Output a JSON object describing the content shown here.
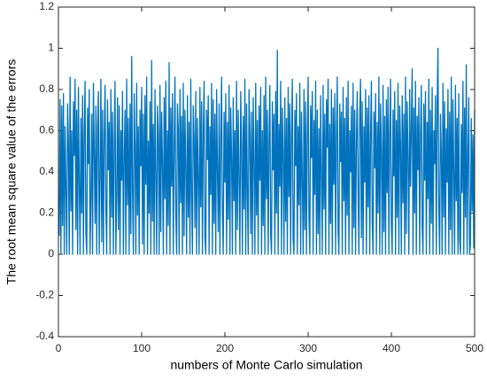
{
  "chart_data": {
    "type": "line",
    "xlabel": "numbers of Monte Carlo simulation",
    "ylabel": "The root mean square value of the errors",
    "color": "#0072bd",
    "xlim": [
      0,
      500
    ],
    "xticks": [
      0,
      100,
      200,
      300,
      400,
      500
    ],
    "ylim": [
      -0.4,
      1.2
    ],
    "yticks": [
      -0.4,
      -0.2,
      0,
      0.2,
      0.4,
      0.6,
      0.8,
      1,
      1.2
    ],
    "grid": false,
    "x": [
      1,
      2,
      3,
      4,
      5,
      6,
      7,
      8,
      9,
      10,
      11,
      12,
      13,
      14,
      15,
      16,
      17,
      18,
      19,
      20,
      21,
      22,
      23,
      24,
      25,
      26,
      27,
      28,
      29,
      30,
      31,
      32,
      33,
      34,
      35,
      36,
      37,
      38,
      39,
      40,
      41,
      42,
      43,
      44,
      45,
      46,
      47,
      48,
      49,
      50,
      51,
      52,
      53,
      54,
      55,
      56,
      57,
      58,
      59,
      60,
      61,
      62,
      63,
      64,
      65,
      66,
      67,
      68,
      69,
      70,
      71,
      72,
      73,
      74,
      75,
      76,
      77,
      78,
      79,
      80,
      81,
      82,
      83,
      84,
      85,
      86,
      87,
      88,
      89,
      90,
      91,
      92,
      93,
      94,
      95,
      96,
      97,
      98,
      99,
      100,
      101,
      102,
      103,
      104,
      105,
      106,
      107,
      108,
      109,
      110,
      111,
      112,
      113,
      114,
      115,
      116,
      117,
      118,
      119,
      120,
      121,
      122,
      123,
      124,
      125,
      126,
      127,
      128,
      129,
      130,
      131,
      132,
      133,
      134,
      135,
      136,
      137,
      138,
      139,
      140,
      141,
      142,
      143,
      144,
      145,
      146,
      147,
      148,
      149,
      150,
      151,
      152,
      153,
      154,
      155,
      156,
      157,
      158,
      159,
      160,
      161,
      162,
      163,
      164,
      165,
      166,
      167,
      168,
      169,
      170,
      171,
      172,
      173,
      174,
      175,
      176,
      177,
      178,
      179,
      180,
      181,
      182,
      183,
      184,
      185,
      186,
      187,
      188,
      189,
      190,
      191,
      192,
      193,
      194,
      195,
      196,
      197,
      198,
      199,
      200,
      201,
      202,
      203,
      204,
      205,
      206,
      207,
      208,
      209,
      210,
      211,
      212,
      213,
      214,
      215,
      216,
      217,
      218,
      219,
      220,
      221,
      222,
      223,
      224,
      225,
      226,
      227,
      228,
      229,
      230,
      231,
      232,
      233,
      234,
      235,
      236,
      237,
      238,
      239,
      240,
      241,
      242,
      243,
      244,
      245,
      246,
      247,
      248,
      249,
      250,
      251,
      252,
      253,
      254,
      255,
      256,
      257,
      258,
      259,
      260,
      261,
      262,
      263,
      264,
      265,
      266,
      267,
      268,
      269,
      270,
      271,
      272,
      273,
      274,
      275,
      276,
      277,
      278,
      279,
      280,
      281,
      282,
      283,
      284,
      285,
      286,
      287,
      288,
      289,
      290,
      291,
      292,
      293,
      294,
      295,
      296,
      297,
      298,
      299,
      300,
      301,
      302,
      303,
      304,
      305,
      306,
      307,
      308,
      309,
      310,
      311,
      312,
      313,
      314,
      315,
      316,
      317,
      318,
      319,
      320,
      321,
      322,
      323,
      324,
      325,
      326,
      327,
      328,
      329,
      330,
      331,
      332,
      333,
      334,
      335,
      336,
      337,
      338,
      339,
      340,
      341,
      342,
      343,
      344,
      345,
      346,
      347,
      348,
      349,
      350,
      351,
      352,
      353,
      354,
      355,
      356,
      357,
      358,
      359,
      360,
      361,
      362,
      363,
      364,
      365,
      366,
      367,
      368,
      369,
      370,
      371,
      372,
      373,
      374,
      375,
      376,
      377,
      378,
      379,
      380,
      381,
      382,
      383,
      384,
      385,
      386,
      387,
      388,
      389,
      390,
      391,
      392,
      393,
      394,
      395,
      396,
      397,
      398,
      399,
      400,
      401,
      402,
      403,
      404,
      405,
      406,
      407,
      408,
      409,
      410,
      411,
      412,
      413,
      414,
      415,
      416,
      417,
      418,
      419,
      420,
      421,
      422,
      423,
      424,
      425,
      426,
      427,
      428,
      429,
      430,
      431,
      432,
      433,
      434,
      435,
      436,
      437,
      438,
      439,
      440,
      441,
      442,
      443,
      444,
      445,
      446,
      447,
      448,
      449,
      450,
      451,
      452,
      453,
      454,
      455,
      456,
      457,
      458,
      459,
      460,
      461,
      462,
      463,
      464,
      465,
      466,
      467,
      468,
      469,
      470,
      471,
      472,
      473,
      474,
      475,
      476,
      477,
      478,
      479,
      480,
      481,
      482,
      483,
      484,
      485,
      486,
      487,
      488,
      489,
      490,
      491,
      492,
      493,
      494,
      495,
      496,
      497,
      498,
      499,
      500
    ],
    "values": [
      0.09,
      0.75,
      0,
      0.72,
      0.14,
      0.78,
      0,
      0.62,
      0.3,
      0,
      0.73,
      0.55,
      0,
      0.86,
      0.21,
      0.6,
      0,
      0.74,
      0.48,
      0.85,
      0.12,
      0.7,
      0,
      0.81,
      0.35,
      0,
      0.66,
      0.2,
      0.77,
      0,
      0.59,
      0.84,
      0.1,
      0,
      0.71,
      0.44,
      0.8,
      0,
      0.26,
      0.68,
      0,
      0.83,
      0.5,
      0.15,
      0.72,
      0,
      0.62,
      0.79,
      0,
      0.38,
      0.85,
      0.06,
      0.7,
      0,
      0.57,
      0.82,
      0.22,
      0,
      0.75,
      0.41,
      0.64,
      0,
      0.8,
      0.18,
      0.69,
      0,
      0.53,
      0.84,
      0,
      0.28,
      0.76,
      0.12,
      0.72,
      0,
      0.6,
      0.36,
      0.79,
      0,
      0.47,
      0.7,
      0,
      0.85,
      0.24,
      0.66,
      0,
      0.73,
      0.1,
      0.96,
      0.31,
      0,
      0.78,
      0.52,
      0,
      0.83,
      0.19,
      0.62,
      0,
      0.7,
      0.43,
      0.81,
      0.05,
      0.68,
      0,
      0.77,
      0.34,
      0.86,
      0,
      0.55,
      0.2,
      0.74,
      0,
      0.94,
      0.16,
      0.63,
      0,
      0.8,
      0.39,
      0,
      0.72,
      0.58,
      0,
      0.82,
      0.11,
      0.69,
      0.45,
      0,
      0.76,
      0.27,
      0.84,
      0,
      0.6,
      0.14,
      0.93,
      0,
      0.71,
      0.33,
      0.78,
      0,
      0.5,
      0.86,
      0.2,
      0,
      0.73,
      0.61,
      0,
      0.8,
      0.25,
      0.67,
      0,
      0.83,
      0.09,
      0.7,
      0.42,
      0,
      0.77,
      0.18,
      0.64,
      0,
      0.85,
      0.3,
      0,
      0.72,
      0.57,
      0.13,
      0.79,
      0,
      0.66,
      0.37,
      0,
      0.81,
      0.23,
      0.74,
      0,
      0.59,
      0.84,
      0.08,
      0,
      0.7,
      0.46,
      0.77,
      0,
      0.62,
      0.29,
      0.83,
      0,
      0.75,
      0.15,
      0.68,
      0,
      0.8,
      0.4,
      0.11,
      0.73,
      0,
      0.56,
      0.86,
      0.21,
      0,
      0.69,
      0.35,
      0.78,
      0,
      0.64,
      0.17,
      0.82,
      0,
      0.71,
      0.48,
      0,
      0.76,
      0.26,
      0.6,
      0,
      0.84,
      0.12,
      0.7,
      0.38,
      0,
      0.79,
      0.53,
      0,
      0.67,
      0.22,
      0.85,
      0,
      0.73,
      0.31,
      0,
      0.8,
      0.58,
      0.1,
      0.69,
      0,
      0.76,
      0.44,
      0,
      0.83,
      0.19,
      0.65,
      0,
      0.72,
      0.36,
      0.81,
      0,
      0.6,
      0.14,
      0.77,
      0,
      0.86,
      0.27,
      0.7,
      0,
      0.55,
      0.82,
      0.09,
      0,
      0.74,
      0.41,
      0.68,
      0,
      0.79,
      0.2,
      0.99,
      0,
      0.63,
      0.33,
      0.84,
      0,
      0.71,
      0.5,
      0,
      0.76,
      0.16,
      0.66,
      0,
      0.81,
      0.28,
      0.73,
      0,
      0.58,
      0.85,
      0.07,
      0,
      0.7,
      0.43,
      0.78,
      0,
      0.62,
      0.24,
      0.83,
      0,
      0.69,
      0.37,
      0,
      0.8,
      0.12,
      0.74,
      0,
      0.57,
      0.86,
      0.18,
      0,
      0.72,
      0.47,
      0.79,
      0,
      0.65,
      0.29,
      0.84,
      0,
      0.7,
      0.1,
      0.61,
      0,
      0.77,
      0.39,
      0,
      0.82,
      0.22,
      0.68,
      0,
      0.75,
      0.52,
      0.85,
      0,
      0.63,
      0.15,
      0.8,
      0,
      0.71,
      0.34,
      0.78,
      0,
      0.58,
      0.86,
      0.11,
      0,
      0.73,
      0.45,
      0.69,
      0,
      0.81,
      0.26,
      0.66,
      0,
      0.76,
      0.19,
      0.84,
      0,
      0.6,
      0.4,
      0.72,
      0,
      0.83,
      0.13,
      0.7,
      0,
      0.55,
      0.79,
      0.31,
      0,
      0.68,
      0.85,
      0.08,
      0.74,
      0,
      0.62,
      0.35,
      0.8,
      0,
      0.71,
      0.23,
      0.77,
      0,
      0.57,
      0.84,
      0.16,
      0,
      0.69,
      0.42,
      0.78,
      0,
      0.64,
      0.2,
      0.86,
      0,
      0.73,
      0.49,
      0,
      0.82,
      0.11,
      0.67,
      0,
      0.75,
      0.3,
      0.81,
      0,
      0.59,
      0.85,
      0.14,
      0,
      0.7,
      0.38,
      0.79,
      0,
      0.65,
      0.18,
      0.83,
      0,
      0.72,
      0.54,
      0,
      0.77,
      0.25,
      0.68,
      0,
      0.86,
      0.1,
      0.74,
      0.46,
      0,
      0.8,
      0.33,
      0.62,
      0.9,
      0,
      0.71,
      0.2,
      0.84,
      0,
      0.67,
      0.41,
      0.76,
      0,
      0.58,
      0.82,
      0.13,
      0,
      0.73,
      0.36,
      0.79,
      0,
      0.64,
      0.27,
      0.85,
      0,
      0.7,
      0.15,
      0.81,
      0,
      0.6,
      0.44,
      0.77,
      0,
      0.72,
      1.0,
      0.22,
      0,
      0.68,
      0.5,
      0,
      0.83,
      0.18,
      0.74,
      0,
      0.61,
      0.35,
      0.8,
      0,
      0.69,
      0.12,
      0.86,
      0,
      0.75,
      0.4,
      0,
      0.82,
      0.26,
      0.66,
      0,
      0.78,
      0.07,
      0,
      0.63,
      0.3,
      0.84,
      0,
      0.71,
      0.18,
      0.92,
      0,
      0.47,
      0.76,
      0,
      0.05,
      0.66,
      0.21,
      0.58,
      0.03,
      0.7
    ]
  }
}
